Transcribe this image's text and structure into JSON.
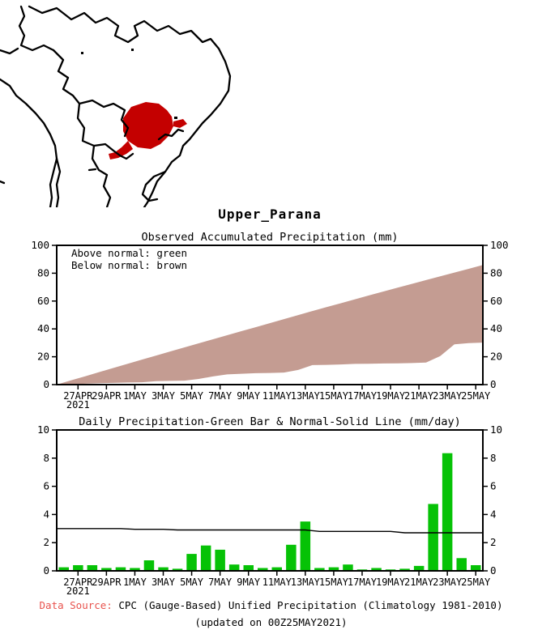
{
  "page": {
    "title": "Upper_Parana",
    "background": "#ffffff"
  },
  "map": {
    "description": "South America outline map with highlighted basin",
    "region_fill": "#c40000",
    "outline_color": "#000000"
  },
  "footer": {
    "source_label": "Data Source:",
    "source_label_color": "#e8534e",
    "source_text": "CPC (Gauge-Based) Unified Precipitation (Climatology 1981-2010)",
    "updated_text": "(updated on 00Z25MAY2021)"
  },
  "chart_data": [
    {
      "type": "area",
      "title": "Observed Accumulated Precipitation (mm)",
      "legend": [
        "Above normal: green",
        "Below normal: brown"
      ],
      "legend_position": "top-left-inside",
      "xlabel": "",
      "ylabel": "",
      "ylim": [
        0,
        100
      ],
      "yticks": [
        0,
        20,
        40,
        60,
        80,
        100
      ],
      "grid": false,
      "x_tick_labels": [
        "27APR",
        "29APR",
        "1MAY",
        "3MAY",
        "5MAY",
        "7MAY",
        "9MAY",
        "11MAY",
        "13MAY",
        "15MAY",
        "17MAY",
        "19MAY",
        "21MAY",
        "23MAY",
        "25MAY"
      ],
      "x_first_sublabel": "2021",
      "dates": [
        "26APR",
        "27APR",
        "28APR",
        "29APR",
        "30APR",
        "1MAY",
        "2MAY",
        "3MAY",
        "4MAY",
        "5MAY",
        "6MAY",
        "7MAY",
        "8MAY",
        "9MAY",
        "10MAY",
        "11MAY",
        "12MAY",
        "13MAY",
        "14MAY",
        "15MAY",
        "16MAY",
        "17MAY",
        "18MAY",
        "19MAY",
        "20MAY",
        "21MAY",
        "22MAY",
        "23MAY",
        "24MAY",
        "25MAY"
      ],
      "band_color": "#c49c92",
      "series": [
        {
          "name": "normal_accumulated",
          "values": [
            3,
            6,
            9,
            12,
            15,
            17.95,
            20.9,
            23.85,
            26.75,
            29.65,
            32.55,
            35.45,
            38.35,
            41.25,
            44.15,
            47.05,
            49.95,
            52.85,
            55.65,
            58.45,
            61.25,
            64.05,
            66.85,
            69.65,
            72.35,
            75.05,
            77.75,
            80.45,
            83.15,
            85.85
          ]
        },
        {
          "name": "observed_accumulated",
          "values": [
            0.25,
            0.65,
            1.05,
            1.25,
            1.5,
            1.7,
            2.45,
            2.7,
            2.85,
            4.05,
            5.85,
            7.35,
            7.8,
            8.2,
            8.4,
            8.65,
            10.5,
            14,
            14.2,
            14.45,
            14.9,
            15,
            15.2,
            15.3,
            15.45,
            15.8,
            20.55,
            28.9,
            29.8,
            30.2
          ]
        }
      ]
    },
    {
      "type": "bar",
      "title": "Daily Precipitation-Green Bar & Normal-Solid Line (mm/day)",
      "xlabel": "",
      "ylabel": "",
      "ylim": [
        0,
        10
      ],
      "yticks": [
        0,
        2,
        4,
        6,
        8,
        10
      ],
      "grid": false,
      "x_tick_labels": [
        "27APR",
        "29APR",
        "1MAY",
        "3MAY",
        "5MAY",
        "7MAY",
        "9MAY",
        "11MAY",
        "13MAY",
        "15MAY",
        "17MAY",
        "19MAY",
        "21MAY",
        "23MAY",
        "25MAY"
      ],
      "x_first_sublabel": "2021",
      "dates": [
        "26APR",
        "27APR",
        "28APR",
        "29APR",
        "30APR",
        "1MAY",
        "2MAY",
        "3MAY",
        "4MAY",
        "5MAY",
        "6MAY",
        "7MAY",
        "8MAY",
        "9MAY",
        "10MAY",
        "11MAY",
        "12MAY",
        "13MAY",
        "14MAY",
        "15MAY",
        "16MAY",
        "17MAY",
        "18MAY",
        "19MAY",
        "20MAY",
        "21MAY",
        "22MAY",
        "23MAY",
        "24MAY",
        "25MAY"
      ],
      "bar_color": "#06c206",
      "values": [
        0.25,
        0.4,
        0.4,
        0.2,
        0.25,
        0.2,
        0.75,
        0.25,
        0.15,
        1.2,
        1.8,
        1.5,
        0.45,
        0.4,
        0.2,
        0.25,
        1.85,
        3.5,
        0.2,
        0.25,
        0.45,
        0.1,
        0.2,
        0.1,
        0.15,
        0.35,
        4.75,
        8.35,
        0.9,
        0.4
      ],
      "normal_line": {
        "name": "normal",
        "color": "#000000",
        "values": [
          3,
          3,
          3,
          3,
          3,
          2.95,
          2.95,
          2.95,
          2.9,
          2.9,
          2.9,
          2.9,
          2.9,
          2.9,
          2.9,
          2.9,
          2.9,
          2.9,
          2.8,
          2.8,
          2.8,
          2.8,
          2.8,
          2.8,
          2.7,
          2.7,
          2.7,
          2.7,
          2.7,
          2.7
        ]
      }
    }
  ]
}
